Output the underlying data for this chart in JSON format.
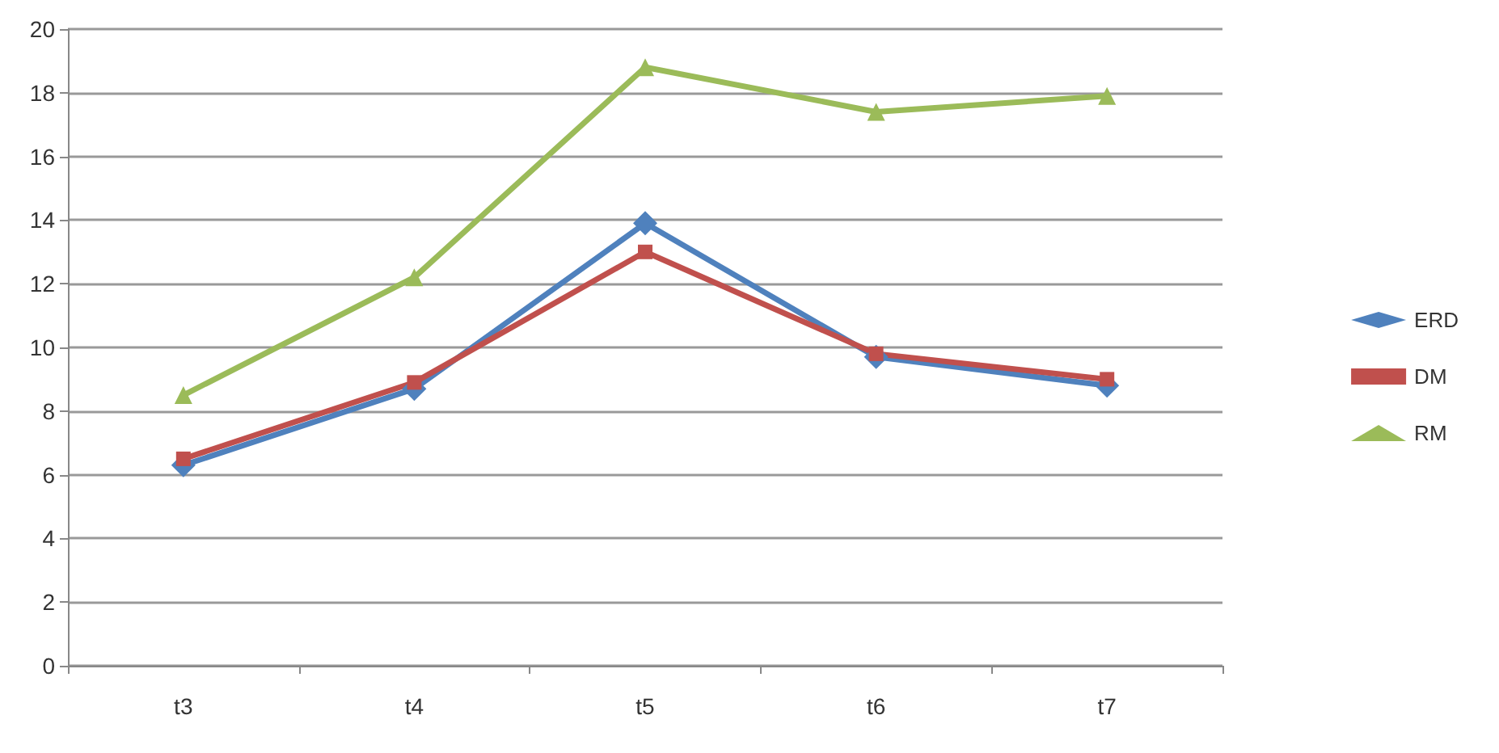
{
  "chart_data": {
    "type": "line",
    "categories": [
      "t3",
      "t4",
      "t5",
      "t6",
      "t7"
    ],
    "series": [
      {
        "name": "ERD",
        "color": "#4f81bd",
        "marker": "diamond",
        "values": [
          6.3,
          8.7,
          13.9,
          9.7,
          8.8
        ]
      },
      {
        "name": "DM",
        "color": "#c0504d",
        "marker": "square",
        "values": [
          6.5,
          8.9,
          13.0,
          9.8,
          9.0
        ]
      },
      {
        "name": "RM",
        "color": "#9bbb59",
        "marker": "triangle",
        "values": [
          8.5,
          12.2,
          18.8,
          17.4,
          17.9
        ]
      }
    ],
    "ylim": [
      0,
      20
    ],
    "yticks": [
      0,
      2,
      4,
      6,
      8,
      10,
      12,
      14,
      16,
      18,
      20
    ],
    "grid": "y",
    "legend": "right"
  }
}
